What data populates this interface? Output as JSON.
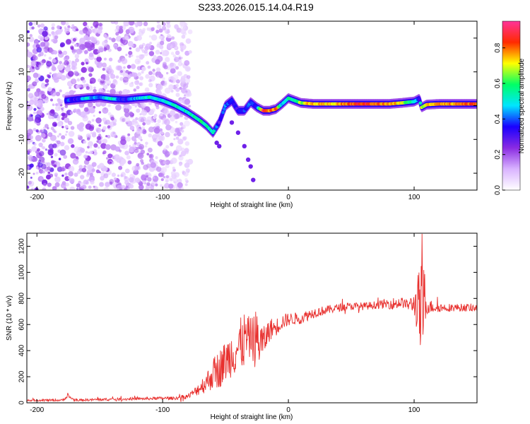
{
  "figure_title": "S233.2026.015.14.04.R19",
  "chart_data": [
    {
      "type": "heatmap",
      "title": "S233.2026.015.14.04.R19",
      "xlabel": "Height of straight line (km)",
      "ylabel": "Frequency (Hz)",
      "xlim": [
        -208,
        150
      ],
      "ylim": [
        -25,
        25
      ],
      "xticks": [
        -200,
        -100,
        0,
        100
      ],
      "xtick_labels": [
        "-200",
        "-100",
        "0",
        "100"
      ],
      "yticks": [
        -20,
        -10,
        0,
        10,
        20
      ],
      "ytick_labels": [
        "-20",
        "-10",
        "0",
        "10",
        "20"
      ],
      "noise_region_x": [
        -208,
        -78
      ],
      "signal_track": {
        "x": [
          -177,
          -170,
          -160,
          -150,
          -140,
          -130,
          -120,
          -110,
          -100,
          -90,
          -80,
          -70,
          -65,
          -60,
          -55,
          -50,
          -45,
          -40,
          -35,
          -30,
          -25,
          -20,
          -15,
          -10,
          -5,
          0,
          5,
          10,
          20,
          30,
          40,
          50,
          60,
          70,
          80,
          90,
          100,
          104,
          106,
          110,
          120,
          130,
          140,
          150
        ],
        "frequency": [
          1.5,
          1.8,
          2.2,
          2.5,
          2.0,
          1.8,
          2.2,
          2.5,
          1.5,
          0,
          -2,
          -4.5,
          -6,
          -8,
          -5,
          0,
          1.5,
          -1.5,
          -1.5,
          1.0,
          -0.5,
          -1.5,
          -1.5,
          -1,
          0.5,
          2.2,
          1.5,
          0.8,
          0.5,
          0.5,
          0.5,
          0.5,
          0.5,
          0.5,
          0.5,
          0.8,
          1.2,
          2.0,
          -0.5,
          0.3,
          0.5,
          0.5,
          0.5,
          0.5
        ],
        "amplitude": [
          0.4,
          0.35,
          0.5,
          0.45,
          0.55,
          0.35,
          0.5,
          0.55,
          0.5,
          0.55,
          0.55,
          0.6,
          0.6,
          0.55,
          0.3,
          0.45,
          0.4,
          0.35,
          0.4,
          0.45,
          0.4,
          0.9,
          0.8,
          0.85,
          0.5,
          0.55,
          0.6,
          0.7,
          0.8,
          0.75,
          0.8,
          0.85,
          0.9,
          0.85,
          0.8,
          0.75,
          0.5,
          0.4,
          0.7,
          0.75,
          0.85,
          0.8,
          0.85,
          0.85
        ]
      },
      "colorbar": {
        "label": "Normalized spectral amplitude",
        "range": [
          0,
          0.95
        ],
        "ticks": [
          0.0,
          0.2,
          0.4,
          0.6,
          0.8
        ],
        "tick_labels": [
          "0.0",
          "0.2",
          "0.4",
          "0.6",
          "0.8"
        ],
        "colors": [
          "#ffffff",
          "#d9b3ff",
          "#8a2be2",
          "#1a00ff",
          "#00e5ff",
          "#00ff66",
          "#ffff00",
          "#ff2a00",
          "#ff3399"
        ]
      }
    },
    {
      "type": "line",
      "xlabel": "Height of straight line (km)",
      "ylabel": "SNR (10 * v/v)",
      "xlim": [
        -208,
        150
      ],
      "ylim": [
        0,
        1300
      ],
      "xticks": [
        -200,
        -100,
        0,
        100
      ],
      "xtick_labels": [
        "-200",
        "-100",
        "0",
        "100"
      ],
      "yticks": [
        0,
        200,
        400,
        600,
        800,
        1000,
        1200
      ],
      "ytick_labels": [
        "0",
        "200",
        "400",
        "600",
        "800",
        "1000",
        "1200"
      ],
      "line_color": "#e8302e",
      "series": [
        {
          "name": "SNR",
          "x": [
            -208,
            -180,
            -175,
            -170,
            -150,
            -120,
            -100,
            -90,
            -80,
            -75,
            -70,
            -65,
            -60,
            -55,
            -50,
            -45,
            -40,
            -35,
            -30,
            -25,
            -20,
            -15,
            -10,
            -5,
            0,
            10,
            20,
            30,
            40,
            50,
            60,
            70,
            80,
            85,
            90,
            95,
            100,
            103,
            106,
            108,
            110,
            120,
            130,
            140,
            150
          ],
          "values": [
            20,
            20,
            50,
            20,
            25,
            30,
            35,
            35,
            50,
            80,
            120,
            160,
            220,
            260,
            320,
            380,
            420,
            480,
            500,
            480,
            460,
            560,
            580,
            620,
            640,
            650,
            690,
            710,
            730,
            740,
            740,
            750,
            760,
            760,
            770,
            750,
            760,
            740,
            650,
            780,
            740,
            730,
            730,
            730,
            730
          ],
          "noise_amplitude": [
            8,
            8,
            15,
            8,
            10,
            10,
            12,
            12,
            20,
            30,
            60,
            80,
            120,
            150,
            160,
            180,
            200,
            220,
            150,
            250,
            120,
            90,
            70,
            60,
            50,
            45,
            40,
            35,
            30,
            30,
            30,
            30,
            40,
            50,
            40,
            40,
            80,
            250,
            450,
            300,
            60,
            35,
            30,
            30,
            30
          ]
        }
      ]
    }
  ]
}
